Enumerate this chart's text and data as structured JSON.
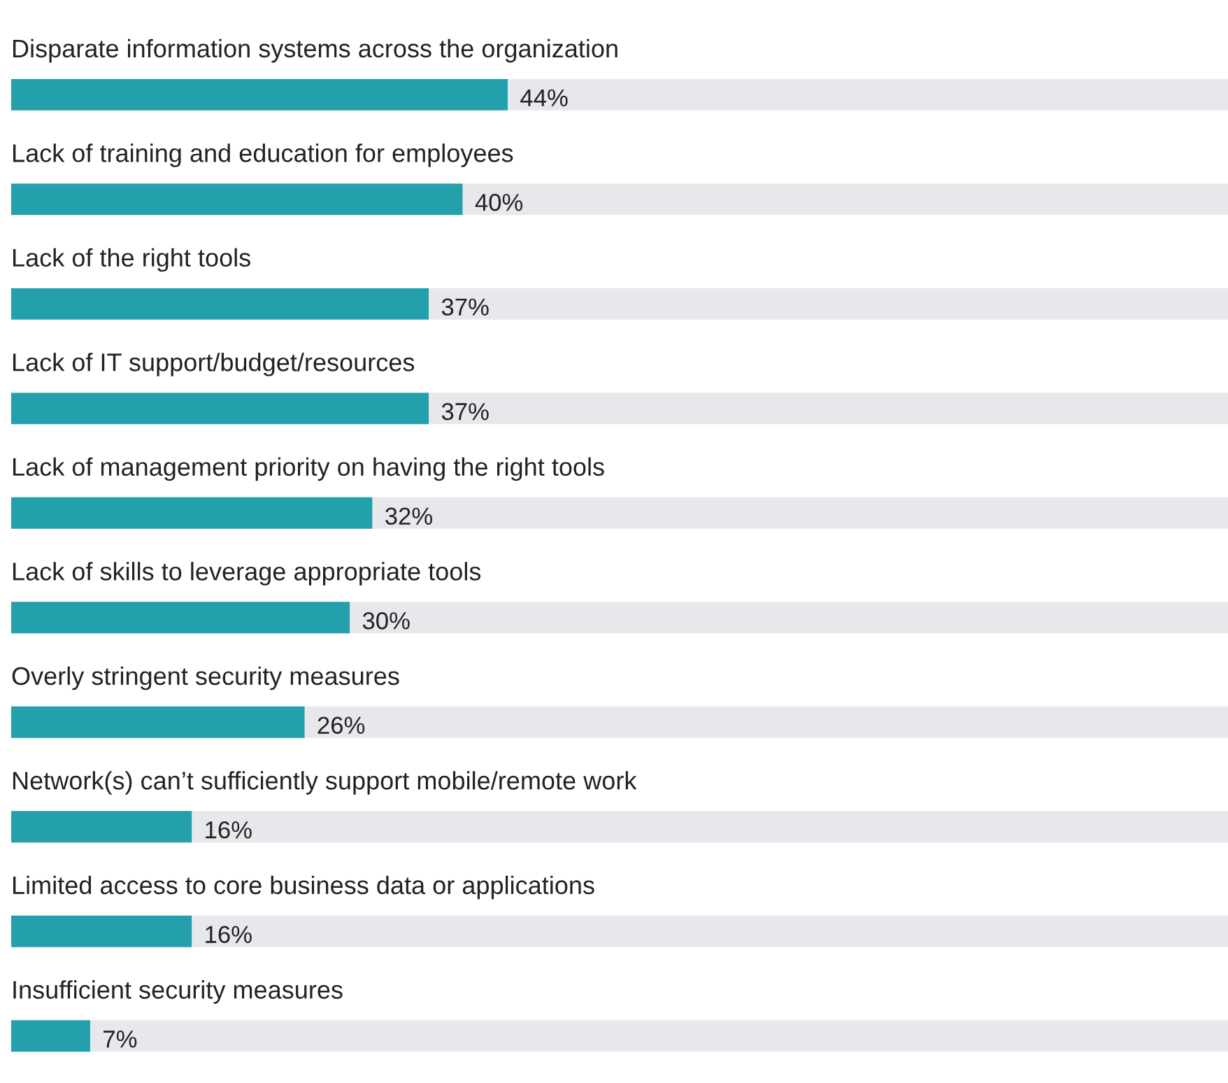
{
  "chart_data": {
    "type": "bar",
    "orientation": "horizontal",
    "categories": [
      "Disparate information systems across the organization",
      "Lack of training and education for employees",
      "Lack of the right tools",
      "Lack of IT support/budget/resources",
      "Lack of management priority on having the right tools",
      "Lack of skills to leverage appropriate tools",
      "Overly stringent security measures",
      "Network(s) can’t sufficiently support mobile/remote work",
      "Limited access to core business data or applications",
      "Insufficient security measures"
    ],
    "values": [
      44,
      40,
      37,
      37,
      32,
      30,
      26,
      16,
      16,
      7
    ],
    "value_labels": [
      "44%",
      "40%",
      "37%",
      "37%",
      "32%",
      "30%",
      "26%",
      "16%",
      "16%",
      "7%"
    ],
    "color": "#23a0ac"
  }
}
